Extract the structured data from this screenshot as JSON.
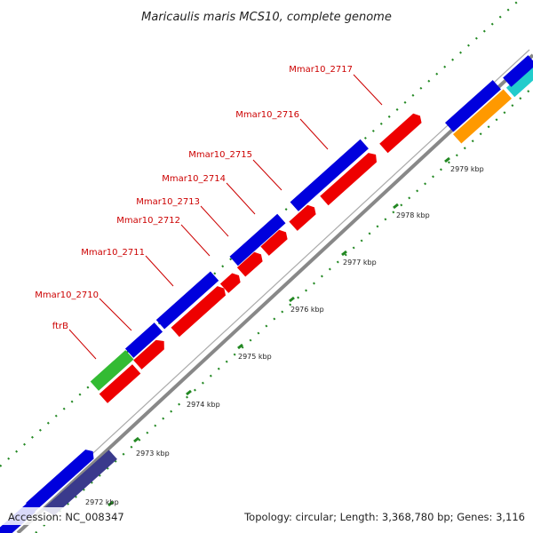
{
  "title": "Maricaulis maris MCS10, complete genome",
  "footer": {
    "accession": "Accession: NC_008347",
    "summary": "Topology: circular; Length: 3,368,780 bp; Genes: 3,116"
  },
  "colors": {
    "forward_cds": "#0000dd",
    "reverse_cds": "#ee0000",
    "rrna": "#33bb33",
    "other_gene": "#ff9900",
    "cyan_feature": "#22cccc",
    "dark_feature": "#3a3a8c",
    "backbone": "#888888",
    "tick_minor": "#228822",
    "label": "#cc0000"
  },
  "gene_labels": [
    "ftrB",
    "Mmar10_2710",
    "Mmar10_2711",
    "Mmar10_2712",
    "Mmar10_2713",
    "Mmar10_2714",
    "Mmar10_2715",
    "Mmar10_2716",
    "Mmar10_2717"
  ],
  "kbp_labels": [
    "2972 kbp",
    "2973 kbp",
    "2974 kbp",
    "2975 kbp",
    "2976 kbp",
    "2977 kbp",
    "2978 kbp",
    "2979 kbp"
  ]
}
